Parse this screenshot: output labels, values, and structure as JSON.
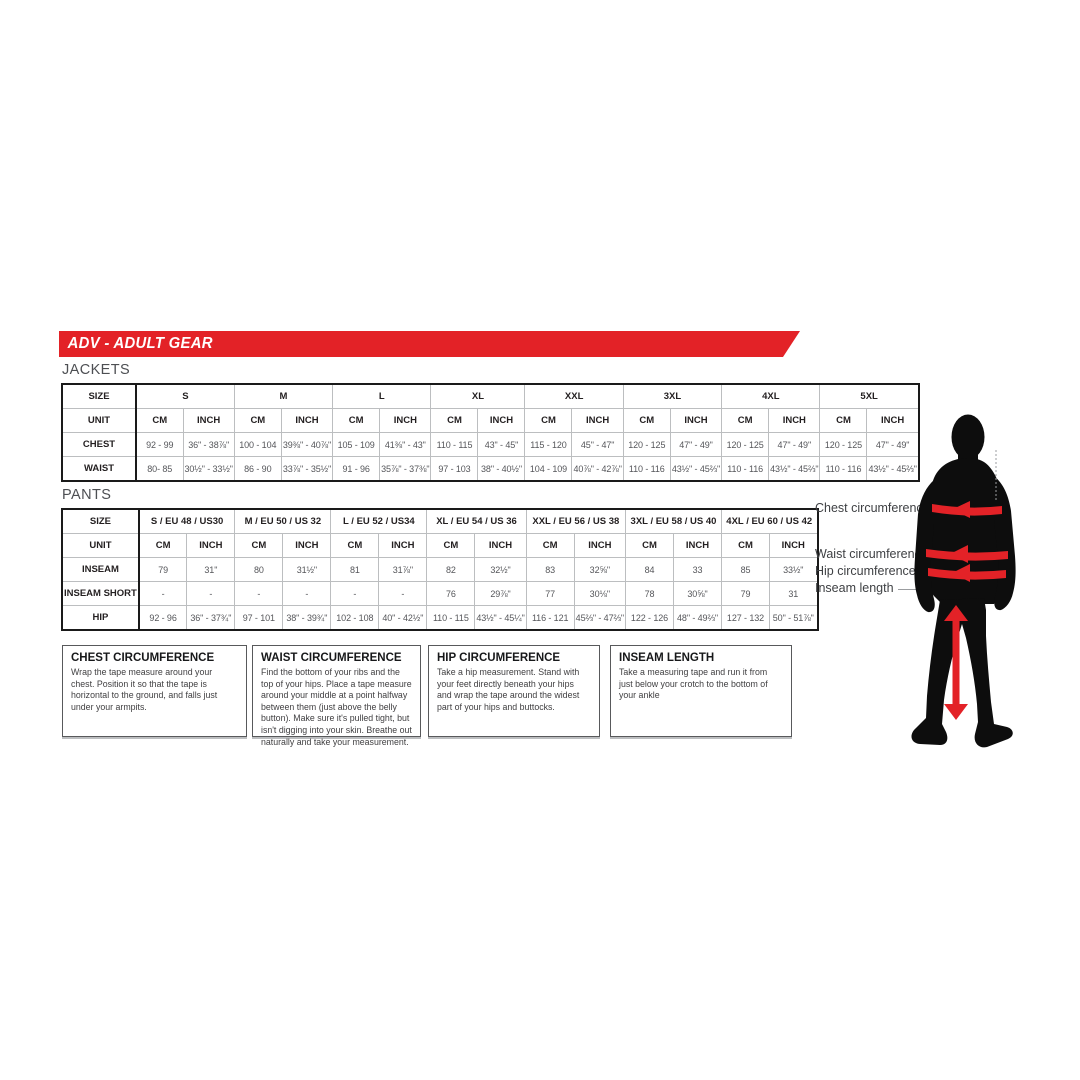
{
  "banner": {
    "title": "ADV - ADULT GEAR"
  },
  "colors": {
    "accent_red": "#e32227",
    "silhouette_black": "#0d0d0d",
    "value_gray": "#55565a"
  },
  "jackets": {
    "label": "JACKETS",
    "corner_label": "SIZE",
    "unit_label": "UNIT",
    "cm_label": "CM",
    "inch_label": "INCH",
    "sizes": [
      "S",
      "M",
      "L",
      "XL",
      "XXL",
      "3XL",
      "4XL",
      "5XL"
    ],
    "rows": [
      {
        "label": "CHEST",
        "cells": [
          [
            "92 - 99",
            "36\" - 38⅞\""
          ],
          [
            "100 - 104",
            "39⅜\" - 40⅞\""
          ],
          [
            "105 - 109",
            "41⅜\" - 43\""
          ],
          [
            "110 - 115",
            "43\" - 45\""
          ],
          [
            "115 - 120",
            "45\" - 47\""
          ],
          [
            "120 - 125",
            "47\" - 49\""
          ],
          [
            "120 - 125",
            "47\" - 49\""
          ],
          [
            "120 - 125",
            "47\" - 49\""
          ]
        ]
      },
      {
        "label": "WAIST",
        "cells": [
          [
            "80- 85",
            "30½\" - 33½\""
          ],
          [
            "86 - 90",
            "33⅞\" - 35½\""
          ],
          [
            "91 - 96",
            "35⅞\" - 37⅜\""
          ],
          [
            "97 - 103",
            "38\" - 40½\""
          ],
          [
            "104 - 109",
            "40⅞\" - 42⅞\""
          ],
          [
            "110 - 116",
            "43½\" - 45⅔\""
          ],
          [
            "110 - 116",
            "43½\" - 45⅔\""
          ],
          [
            "110 - 116",
            "43½\" - 45⅔\""
          ]
        ]
      }
    ]
  },
  "pants": {
    "label": "PANTS",
    "corner_label": "SIZE",
    "unit_label": "UNIT",
    "cm_label": "CM",
    "inch_label": "INCH",
    "sizes": [
      "S / EU 48 / US30",
      "M / EU 50 / US 32",
      "L / EU 52 / US34",
      "XL / EU 54 / US 36",
      "XXL / EU 56 / US 38",
      "3XL / EU 58 / US 40",
      "4XL / EU 60 / US 42"
    ],
    "rows": [
      {
        "label": "INSEAM",
        "cells": [
          [
            "79",
            "31\""
          ],
          [
            "80",
            "31½\""
          ],
          [
            "81",
            "31⅞\""
          ],
          [
            "82",
            "32½\""
          ],
          [
            "83",
            "32⅝\""
          ],
          [
            "84",
            "33"
          ],
          [
            "85",
            "33½\""
          ]
        ]
      },
      {
        "label": "INSEAM SHORT",
        "cells": [
          [
            "-",
            "-"
          ],
          [
            "-",
            "-"
          ],
          [
            "-",
            "-"
          ],
          [
            "76",
            "29⅞\""
          ],
          [
            "77",
            "30⅛\""
          ],
          [
            "78",
            "30⅝\""
          ],
          [
            "79",
            "31"
          ]
        ]
      },
      {
        "label": "HIP",
        "cells": [
          [
            "92 - 96",
            "36\" - 37¾\""
          ],
          [
            "97 - 101",
            "38\" - 39¾\""
          ],
          [
            "102 - 108",
            "40\" - 42½\""
          ],
          [
            "110 - 115",
            "43½\" - 45¼\""
          ],
          [
            "116 - 121",
            "45⅔\" - 47⅔\""
          ],
          [
            "122 - 126",
            "48\" - 49⅔\""
          ],
          [
            "127 - 132",
            "50\" - 51⅞\""
          ]
        ]
      }
    ]
  },
  "info_boxes": [
    {
      "title": "CHEST CIRCUMFERENCE",
      "text": "Wrap the tape measure around your chest. Position it so that the tape is horizontal to the ground, and falls just under your armpits."
    },
    {
      "title": "WAIST CIRCUMFERENCE",
      "text": "Find the bottom of your ribs and the top of your hips. Place a tape measure around your middle at a point halfway between them (just above the belly button). Make sure it's pulled tight, but isn't digging into your skin. Breathe out naturally and take your measurement."
    },
    {
      "title": "HIP CIRCUMFERENCE",
      "text": "Take a hip measurement. Stand with your feet directly beneath your hips and wrap the tape around the widest part of your hips and buttocks."
    },
    {
      "title": "INSEAM LENGTH",
      "text": "Take a measuring tape and run it from just below your crotch to the bottom of your ankle"
    }
  ],
  "figure": {
    "labels": [
      "Chest circumference",
      "Waist circumference",
      "Hip circumference",
      "Inseam length"
    ]
  }
}
